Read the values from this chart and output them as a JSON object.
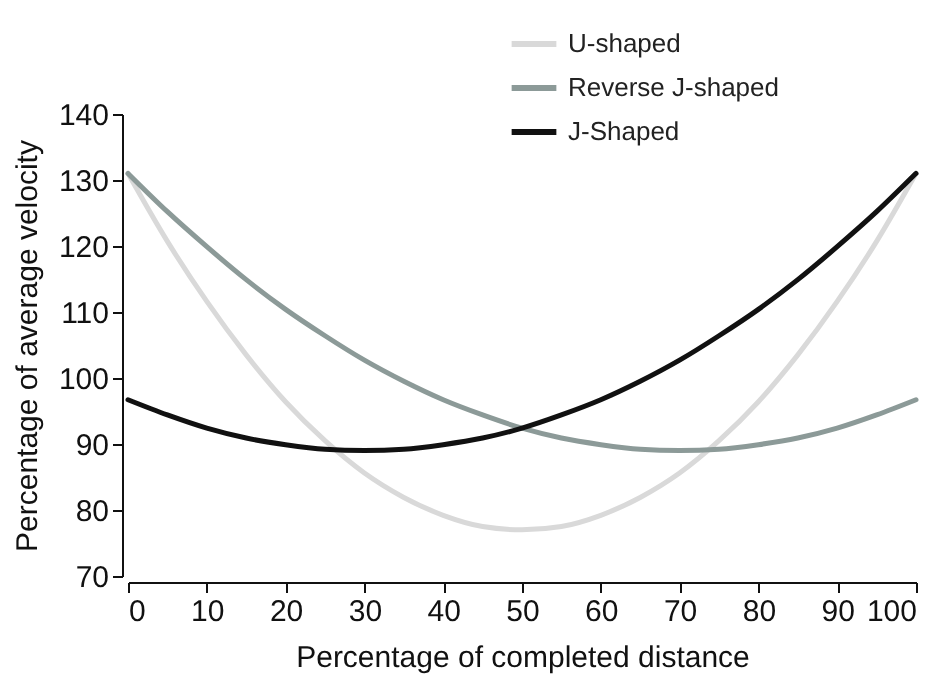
{
  "chart_data": {
    "type": "line",
    "xlabel": "Percentage of completed distance",
    "ylabel": "Percentage of average velocity",
    "x": [
      0,
      5,
      10,
      15,
      20,
      25,
      30,
      35,
      40,
      45,
      50,
      55,
      60,
      65,
      70,
      75,
      80,
      85,
      90,
      95,
      100
    ],
    "series": [
      {
        "name": "U-shaped",
        "color": "#d9d9d9",
        "values": [
          131,
          120.7,
          111.6,
          103.5,
          96.4,
          90.5,
          85.6,
          81.9,
          79.2,
          77.5,
          77,
          77.5,
          79.2,
          81.9,
          85.6,
          90.5,
          96.4,
          103.5,
          111.6,
          120.7,
          131
        ]
      },
      {
        "name": "Reverse J-shaped",
        "color": "#8c9a98",
        "values": [
          131,
          125.2,
          119.9,
          114.9,
          110.4,
          106.4,
          102.7,
          99.5,
          96.7,
          94.4,
          92.4,
          90.9,
          89.9,
          89.2,
          89,
          89.2,
          89.9,
          90.9,
          92.4,
          94.4,
          96.7
        ]
      },
      {
        "name": "J-Shaped",
        "color": "#111111",
        "values": [
          96.7,
          94.4,
          92.4,
          90.9,
          89.9,
          89.2,
          89,
          89.2,
          89.9,
          90.9,
          92.4,
          94.4,
          96.7,
          99.5,
          102.7,
          106.4,
          110.4,
          114.9,
          119.9,
          125.2,
          131
        ]
      }
    ],
    "xlim": [
      0,
      100
    ],
    "ylim": [
      70,
      140
    ],
    "xticks": [
      0,
      10,
      20,
      30,
      40,
      50,
      60,
      70,
      80,
      90,
      100
    ],
    "yticks": [
      70,
      80,
      90,
      100,
      110,
      120,
      130,
      140
    ],
    "grid": false,
    "legend": "top right"
  }
}
